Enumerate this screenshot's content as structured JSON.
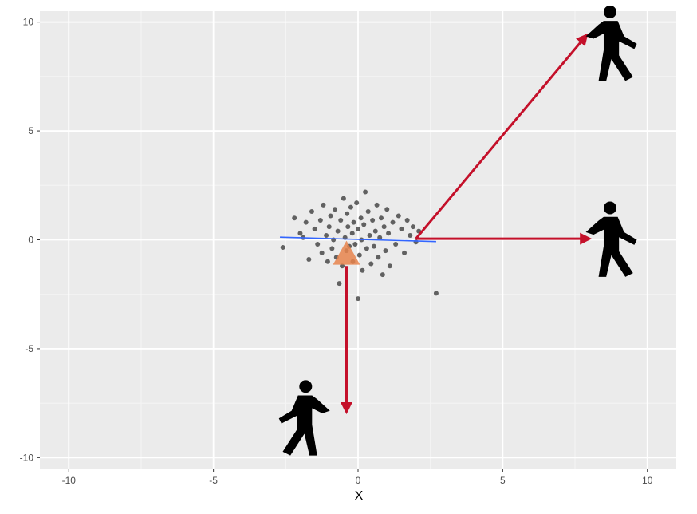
{
  "chart_data": {
    "type": "scatter",
    "title": "",
    "xlabel": "X",
    "ylabel": "",
    "xlim": [
      -11,
      11
    ],
    "ylim": [
      -10.5,
      10.5
    ],
    "x_ticks": [
      -10,
      -5,
      0,
      5,
      10
    ],
    "y_ticks": [
      10,
      5,
      0,
      -5,
      -10
    ],
    "x_tick_labels": [
      "-10",
      "-5",
      "0",
      "5",
      "10"
    ],
    "y_tick_labels": [
      "10",
      "5",
      "0",
      "-5",
      "-10"
    ],
    "grid": true,
    "colors": {
      "panel": "#ebebeb",
      "grid_major": "#ffffff",
      "grid_minor": "#f5f5f5",
      "points": "#333333",
      "regression_line": "#3366ff",
      "arrows": "#c4102a",
      "center_marker": "#e8844c",
      "walker": "#000000"
    },
    "points": [
      [
        -2.6,
        -0.35
      ],
      [
        -2.2,
        1.0
      ],
      [
        -2.0,
        0.3
      ],
      [
        -1.9,
        0.1
      ],
      [
        -1.8,
        0.8
      ],
      [
        -1.7,
        -0.9
      ],
      [
        -1.6,
        1.3
      ],
      [
        -1.5,
        0.5
      ],
      [
        -1.4,
        -0.2
      ],
      [
        -1.3,
        0.9
      ],
      [
        -1.25,
        -0.6
      ],
      [
        -1.2,
        1.6
      ],
      [
        -1.1,
        0.2
      ],
      [
        -1.05,
        -1.0
      ],
      [
        -1.0,
        0.6
      ],
      [
        -0.95,
        1.1
      ],
      [
        -0.9,
        -0.4
      ],
      [
        -0.85,
        0.0
      ],
      [
        -0.8,
        1.4
      ],
      [
        -0.75,
        -0.8
      ],
      [
        -0.7,
        0.4
      ],
      [
        -0.65,
        -2.0
      ],
      [
        -0.6,
        0.9
      ],
      [
        -0.55,
        -1.2
      ],
      [
        -0.5,
        1.9
      ],
      [
        -0.45,
        0.1
      ],
      [
        -0.4,
        -0.5
      ],
      [
        -0.38,
        1.2
      ],
      [
        -0.35,
        0.6
      ],
      [
        -0.3,
        -0.3
      ],
      [
        -0.25,
        1.5
      ],
      [
        -0.2,
        0.3
      ],
      [
        -0.18,
        -1.0
      ],
      [
        -0.15,
        0.8
      ],
      [
        -0.1,
        -0.2
      ],
      [
        -0.05,
        1.7
      ],
      [
        0.0,
        0.5
      ],
      [
        0.0,
        -2.7
      ],
      [
        0.05,
        -0.7
      ],
      [
        0.1,
        1.0
      ],
      [
        0.12,
        0.0
      ],
      [
        0.15,
        -1.4
      ],
      [
        0.2,
        0.7
      ],
      [
        0.25,
        2.2
      ],
      [
        0.3,
        -0.4
      ],
      [
        0.35,
        1.3
      ],
      [
        0.4,
        0.2
      ],
      [
        0.45,
        -1.1
      ],
      [
        0.5,
        0.9
      ],
      [
        0.55,
        -0.3
      ],
      [
        0.6,
        0.4
      ],
      [
        0.65,
        1.6
      ],
      [
        0.7,
        -0.8
      ],
      [
        0.75,
        0.1
      ],
      [
        0.8,
        1.0
      ],
      [
        0.85,
        -1.6
      ],
      [
        0.9,
        0.6
      ],
      [
        0.95,
        -0.5
      ],
      [
        1.0,
        1.4
      ],
      [
        1.05,
        0.3
      ],
      [
        1.1,
        -1.2
      ],
      [
        1.2,
        0.8
      ],
      [
        1.3,
        -0.2
      ],
      [
        1.4,
        1.1
      ],
      [
        1.5,
        0.5
      ],
      [
        1.6,
        -0.6
      ],
      [
        1.7,
        0.9
      ],
      [
        1.8,
        0.2
      ],
      [
        1.9,
        0.6
      ],
      [
        2.0,
        -0.1
      ],
      [
        2.1,
        0.4
      ],
      [
        2.7,
        -2.45
      ]
    ],
    "regression_line": {
      "x": [
        -2.7,
        2.7
      ],
      "y": [
        0.12,
        -0.08
      ]
    },
    "center_marker": {
      "x": -0.4,
      "y": -0.7
    },
    "arrows": [
      {
        "from": [
          2.0,
          0.05
        ],
        "to": [
          7.9,
          9.4
        ]
      },
      {
        "from": [
          2.0,
          0.05
        ],
        "to": [
          8.0,
          0.05
        ]
      },
      {
        "from": [
          -0.4,
          -1.2
        ],
        "to": [
          -0.4,
          -7.9
        ]
      }
    ],
    "walkers": [
      {
        "x": 8.7,
        "y": 9.0,
        "icon": "walking-person-icon"
      },
      {
        "x": 8.7,
        "y": 0.0,
        "icon": "walking-person-icon"
      },
      {
        "x": -1.8,
        "y": -8.2,
        "icon": "walking-person-icon"
      }
    ]
  }
}
